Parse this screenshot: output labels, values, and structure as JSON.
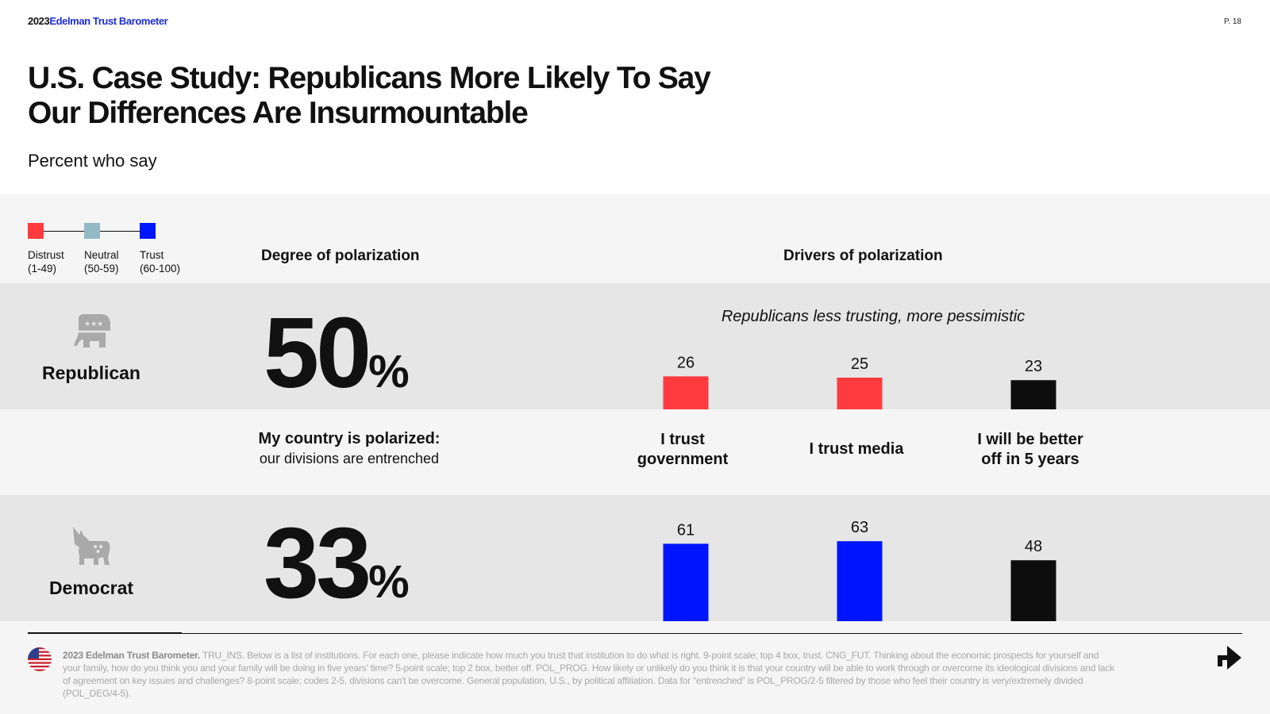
{
  "header": {
    "brand_year": "2023",
    "brand_name": "Edelman Trust Barometer",
    "page_number": "P. 18"
  },
  "title": "U.S. Case Study: Republicans More Likely To Say Our Differences Are Insurmountable",
  "subtitle": "Percent who say",
  "legend": [
    {
      "label": "Distrust",
      "range": "(1-49)",
      "color": "#ff3b3f"
    },
    {
      "label": "Neutral",
      "range": "(50-59)",
      "color": "#93b9c4"
    },
    {
      "label": "Trust",
      "range": "(60-100)",
      "color": "#0015ff"
    }
  ],
  "sections": {
    "degree": "Degree of polarization",
    "drivers": "Drivers of polarization"
  },
  "parties": {
    "republican": {
      "label": "Republican",
      "icon": "elephant-icon",
      "pct": "50",
      "pct_symbol": "%"
    },
    "democrat": {
      "label": "Democrat",
      "icon": "donkey-icon",
      "pct": "33",
      "pct_symbol": "%"
    }
  },
  "driver_note": "Republicans less trusting, more pessimistic",
  "polarized_label": {
    "title": "My country is polarized:",
    "sub": "our divisions are entrenched"
  },
  "chart_data": {
    "type": "bar",
    "categories": [
      "I trust government",
      "I trust media",
      "I will be better off in 5 years"
    ],
    "category_lines": [
      [
        "I trust",
        "government"
      ],
      [
        "I trust media"
      ],
      [
        "I will be better",
        "off in 5 years"
      ]
    ],
    "series": [
      {
        "name": "Republican",
        "values": [
          26,
          25,
          23
        ],
        "colors": [
          "#ff3b3f",
          "#ff3b3f",
          "#0d0d0d"
        ]
      },
      {
        "name": "Democrat",
        "values": [
          61,
          63,
          48
        ],
        "colors": [
          "#0015ff",
          "#0015ff",
          "#0d0d0d"
        ]
      }
    ],
    "ylim": [
      0,
      100
    ],
    "title": "",
    "xlabel": "",
    "ylabel": ""
  },
  "footnote": {
    "bold": "2023 Edelman Trust Barometer.",
    "text": " TRU_INS. Below is a list of institutions. For each one, please indicate how much you trust that institution to do what is right. 9-point scale; top 4 box, trust. CNG_FUT. Thinking about the economic prospects for yourself and your family, how do you think you and your family will be doing in five years' time? 5-point scale; top 2 box, better off. POL_PROG. How likely or unlikely do you think it is that your country will be able to work through or overcome its ideological divisions and lack of agreement on key issues and challenges? 8-point scale; codes 2-5, divisions can't be overcome. General population, U.S., by political affiliation. Data for “entrenched” is POL_PROG/2-5 filtered by those who feel their country is very/extremely divided (POL_DEG/4-5)."
  },
  "icons": {
    "flag": "us-flag-icon",
    "next": "next-arrow-icon"
  }
}
